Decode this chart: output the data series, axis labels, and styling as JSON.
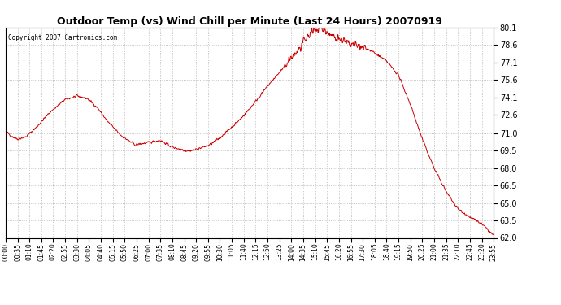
{
  "title": "Outdoor Temp (vs) Wind Chill per Minute (Last 24 Hours) 20070919",
  "copyright": "Copyright 2007 Cartronics.com",
  "line_color": "#cc0000",
  "background_color": "#ffffff",
  "plot_background": "#ffffff",
  "grid_color": "#aaaaaa",
  "ylim": [
    62.0,
    80.1
  ],
  "yticks": [
    62.0,
    63.5,
    65.0,
    66.5,
    68.0,
    69.5,
    71.0,
    72.6,
    74.1,
    75.6,
    77.1,
    78.6,
    80.1
  ],
  "x_labels": [
    "00:00",
    "00:35",
    "01:10",
    "01:45",
    "02:20",
    "02:55",
    "03:30",
    "04:05",
    "04:40",
    "05:15",
    "05:50",
    "06:25",
    "07:00",
    "07:35",
    "08:10",
    "08:45",
    "09:20",
    "09:55",
    "10:30",
    "11:05",
    "11:40",
    "12:15",
    "12:50",
    "13:25",
    "14:00",
    "14:35",
    "15:10",
    "15:45",
    "16:20",
    "16:55",
    "17:30",
    "18:05",
    "18:40",
    "19:15",
    "19:50",
    "20:25",
    "21:00",
    "21:35",
    "22:10",
    "22:45",
    "23:20",
    "23:55"
  ],
  "data_x_minutes": [
    0,
    35,
    70,
    105,
    140,
    175,
    210,
    245,
    280,
    315,
    350,
    385,
    420,
    455,
    490,
    525,
    560,
    595,
    630,
    665,
    700,
    735,
    770,
    805,
    840,
    875,
    910,
    945,
    980,
    1015,
    1050,
    1085,
    1120,
    1155,
    1190,
    1225,
    1260,
    1295,
    1330,
    1365,
    1400,
    1435
  ],
  "ctrl_t": [
    0,
    20,
    35,
    60,
    90,
    130,
    175,
    210,
    240,
    270,
    300,
    340,
    380,
    420,
    455,
    490,
    520,
    530,
    545,
    560,
    580,
    600,
    630,
    660,
    690,
    720,
    750,
    780,
    810,
    830,
    840,
    855,
    865,
    875,
    885,
    895,
    910,
    925,
    940,
    955,
    970,
    985,
    1000,
    1015,
    1030,
    1045,
    1060,
    1080,
    1100,
    1120,
    1155,
    1190,
    1225,
    1260,
    1295,
    1330,
    1365,
    1400,
    1435
  ],
  "ctrl_y": [
    71.2,
    70.7,
    70.5,
    70.7,
    71.5,
    72.8,
    73.9,
    74.2,
    74.0,
    73.2,
    72.0,
    70.8,
    70.0,
    70.2,
    70.4,
    69.8,
    69.6,
    69.5,
    69.5,
    69.6,
    69.8,
    70.0,
    70.6,
    71.4,
    72.2,
    73.2,
    74.3,
    75.4,
    76.4,
    77.0,
    77.5,
    77.9,
    78.3,
    78.7,
    79.1,
    79.5,
    79.9,
    80.1,
    79.8,
    79.5,
    79.3,
    79.1,
    78.8,
    78.6,
    78.5,
    78.4,
    78.3,
    78.0,
    77.6,
    77.2,
    76.0,
    73.5,
    70.5,
    68.0,
    66.0,
    64.5,
    63.8,
    63.2,
    62.2
  ]
}
